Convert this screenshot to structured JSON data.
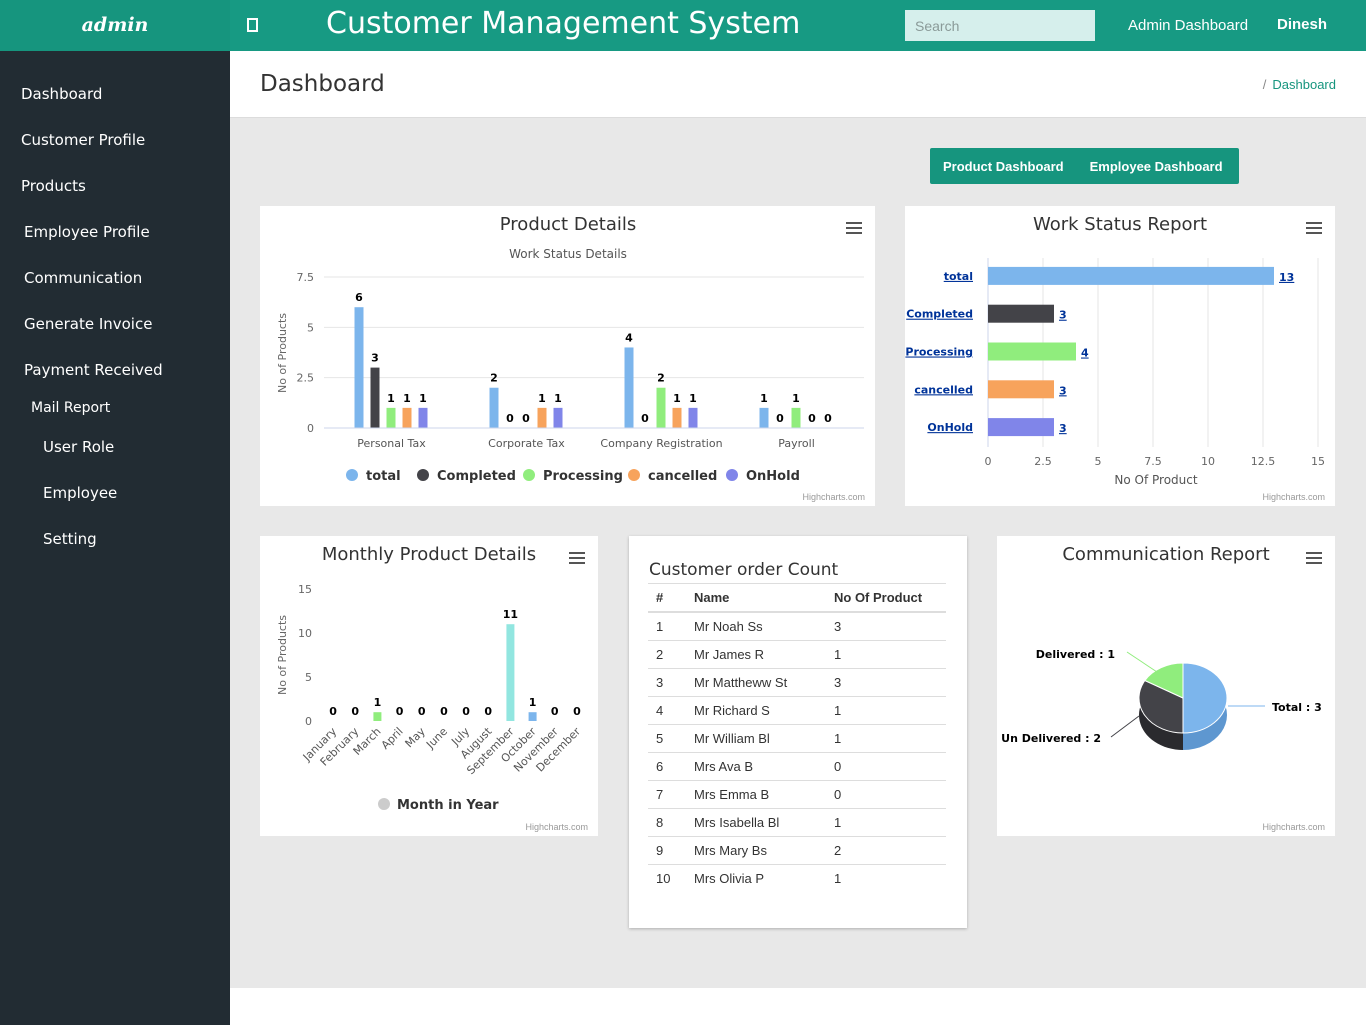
{
  "app": {
    "brand": "admin",
    "title": "Customer Management System"
  },
  "search": {
    "placeholder": "Search"
  },
  "nav": {
    "admin_dashboard": "Admin Dashboard",
    "user": "Dinesh"
  },
  "sidebar": {
    "items": [
      {
        "label": "Dashboard"
      },
      {
        "label": "Customer Profile"
      },
      {
        "label": "Products"
      },
      {
        "label": "Employee Profile"
      },
      {
        "label": "Communication"
      },
      {
        "label": "Generate Invoice"
      },
      {
        "label": "Payment Received"
      },
      {
        "label": "Mail Report"
      },
      {
        "label": "User Role"
      },
      {
        "label": "Employee"
      },
      {
        "label": "Setting"
      }
    ]
  },
  "page": {
    "title": "Dashboard",
    "breadcrumb_sep": "/",
    "breadcrumb": "Dashboard"
  },
  "buttons": {
    "product_dashboard": "Product Dashboard",
    "employee_dashboard": "Employee Dashboard"
  },
  "credit": "Highcharts.com",
  "colors": {
    "total": "#7cb5ec",
    "completed": "#434348",
    "processing": "#90ed7d",
    "cancelled": "#f7a35c",
    "onhold": "#8085e9",
    "monthly": "#92e6e0",
    "brand": "#16957e",
    "sidebar": "#222c33"
  },
  "chart_data": [
    {
      "type": "bar",
      "title": "Product Details",
      "subtitle": "Work Status Details",
      "ylabel": "No of Products",
      "xlabel": "",
      "ylim": [
        0,
        7.5
      ],
      "yticks": [
        "0",
        "2.5",
        "5",
        "7.5"
      ],
      "categories": [
        "Personal Tax",
        "Corporate Tax",
        "Company Registration",
        "Payroll"
      ],
      "series": [
        {
          "name": "total",
          "values": [
            6,
            2,
            4,
            1
          ]
        },
        {
          "name": "Completed",
          "values": [
            3,
            0,
            0,
            0
          ]
        },
        {
          "name": "Processing",
          "values": [
            1,
            0,
            2,
            1
          ]
        },
        {
          "name": "cancelled",
          "values": [
            1,
            1,
            1,
            0
          ]
        },
        {
          "name": "OnHold",
          "values": [
            1,
            1,
            1,
            0
          ]
        }
      ],
      "grid": true,
      "legend": "bottom"
    },
    {
      "type": "bar",
      "orientation": "horizontal",
      "title": "Work Status Report",
      "xlabel": "No Of Product",
      "xlim": [
        0,
        15
      ],
      "xticks": [
        "0",
        "2.5",
        "5",
        "7.5",
        "10",
        "12.5",
        "15"
      ],
      "categories": [
        "total",
        "Completed",
        "Processing",
        "cancelled",
        "OnHold"
      ],
      "values": [
        13,
        3,
        4,
        3,
        3
      ],
      "grid": true
    },
    {
      "type": "bar",
      "title": "Monthly Product Details",
      "ylabel": "No of Products",
      "ylim": [
        0,
        15
      ],
      "yticks": [
        "0",
        "5",
        "10",
        "15"
      ],
      "categories": [
        "January",
        "February",
        "March",
        "April",
        "May",
        "June",
        "July",
        "August",
        "September",
        "October",
        "November",
        "December"
      ],
      "series": [
        {
          "name": "Month in Year",
          "values": [
            0,
            0,
            1,
            0,
            0,
            0,
            0,
            0,
            11,
            1,
            0,
            0
          ]
        }
      ],
      "legend": "bottom"
    },
    {
      "type": "table",
      "title": "Customer order Count",
      "columns": [
        "#",
        "Name",
        "No Of Product"
      ],
      "rows": [
        [
          "1",
          "Mr Noah Ss",
          "3"
        ],
        [
          "2",
          "Mr James R",
          "1"
        ],
        [
          "3",
          "Mr Mattheww St",
          "3"
        ],
        [
          "4",
          "Mr Richard S",
          "1"
        ],
        [
          "5",
          "Mr William Bl",
          "1"
        ],
        [
          "6",
          "Mrs Ava B",
          "0"
        ],
        [
          "7",
          "Mrs Emma B",
          "0"
        ],
        [
          "8",
          "Mrs Isabella Bl",
          "1"
        ],
        [
          "9",
          "Mrs Mary Bs",
          "2"
        ],
        [
          "10",
          "Mrs Olivia P",
          "1"
        ]
      ]
    },
    {
      "type": "pie",
      "title": "Communication Report",
      "slices": [
        {
          "label": "Total : 3",
          "value": 3
        },
        {
          "label": "Un Delivered : 2",
          "value": 2
        },
        {
          "label": "Delivered : 1",
          "value": 1
        }
      ]
    }
  ]
}
